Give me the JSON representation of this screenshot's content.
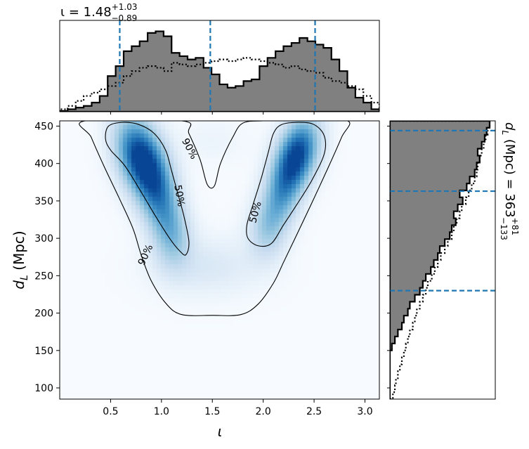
{
  "chart_data": [
    {
      "panel": "top-marginal",
      "type": "histogram-step",
      "title": {
        "symbol": "ι",
        "text": " = 1.48",
        "sup": "+1.03",
        "sub": "−0.89"
      },
      "x_range": [
        0.0,
        3.1416
      ],
      "bins": 40,
      "series": [
        {
          "style": "filled-step",
          "color": "#808080",
          "values": [
            0.01,
            0.03,
            0.05,
            0.07,
            0.11,
            0.19,
            0.43,
            0.55,
            0.73,
            0.79,
            0.85,
            0.95,
            0.97,
            0.91,
            0.71,
            0.67,
            0.63,
            0.65,
            0.53,
            0.45,
            0.33,
            0.29,
            0.31,
            0.37,
            0.39,
            0.55,
            0.65,
            0.73,
            0.79,
            0.83,
            0.89,
            0.85,
            0.81,
            0.77,
            0.63,
            0.49,
            0.29,
            0.17,
            0.11,
            0.03
          ]
        },
        {
          "style": "dotted-step",
          "color": "#000000",
          "values": [
            0.03,
            0.07,
            0.13,
            0.19,
            0.23,
            0.27,
            0.31,
            0.35,
            0.43,
            0.49,
            0.53,
            0.55,
            0.53,
            0.49,
            0.59,
            0.57,
            0.55,
            0.57,
            0.59,
            0.61,
            0.63,
            0.61,
            0.63,
            0.65,
            0.63,
            0.61,
            0.59,
            0.57,
            0.53,
            0.55,
            0.51,
            0.49,
            0.47,
            0.41,
            0.37,
            0.35,
            0.31,
            0.27,
            0.19,
            0.11
          ]
        }
      ],
      "vlines": [
        0.59,
        1.48,
        2.51
      ],
      "vline_color": "#1f77b4"
    },
    {
      "panel": "main",
      "type": "heatmap",
      "xlabel": "ι",
      "ylabel": {
        "main": "d",
        "sub": "L",
        "rest": " (Mpc)"
      },
      "x_range": [
        0.0,
        3.1416
      ],
      "y_range": [
        85,
        457
      ],
      "xticks": [
        0.5,
        1.0,
        1.5,
        2.0,
        2.5,
        3.0
      ],
      "xtick_labels": [
        "0.5",
        "1.0",
        "1.5",
        "2.0",
        "2.5",
        "3.0"
      ],
      "yticks": [
        100,
        150,
        200,
        250,
        300,
        350,
        400,
        450
      ],
      "ytick_labels": [
        "100",
        "150",
        "200",
        "250",
        "300",
        "350",
        "400",
        "450"
      ],
      "colormap": "Blues",
      "density_blobs": [
        {
          "x": 0.78,
          "y": 410,
          "sx": 0.17,
          "sy": 38,
          "w": 1.0,
          "corr": -0.3
        },
        {
          "x": 0.98,
          "y": 355,
          "sx": 0.15,
          "sy": 42,
          "w": 0.65,
          "corr": -0.3
        },
        {
          "x": 1.12,
          "y": 300,
          "sx": 0.13,
          "sy": 30,
          "w": 0.32,
          "corr": 0
        },
        {
          "x": 2.35,
          "y": 415,
          "sx": 0.15,
          "sy": 34,
          "w": 0.95,
          "corr": 0.3
        },
        {
          "x": 2.18,
          "y": 360,
          "sx": 0.14,
          "sy": 38,
          "w": 0.6,
          "corr": 0.3
        },
        {
          "x": 2.02,
          "y": 310,
          "sx": 0.13,
          "sy": 28,
          "w": 0.3,
          "corr": 0
        },
        {
          "x": 1.45,
          "y": 262,
          "sx": 0.38,
          "sy": 28,
          "w": 0.18,
          "corr": 0
        },
        {
          "x": 1.5,
          "y": 430,
          "sx": 0.25,
          "sy": 22,
          "w": 0.07,
          "corr": 0
        }
      ],
      "contours": [
        {
          "label": "90%",
          "label_pos": [
            1.28,
            420
          ],
          "label_rot": 62,
          "points": [
            [
              0.25,
              457
            ],
            [
              0.31,
              435
            ],
            [
              0.44,
              395
            ],
            [
              0.58,
              355
            ],
            [
              0.72,
              313
            ],
            [
              0.8,
              278
            ],
            [
              0.9,
              243
            ],
            [
              1.05,
              212
            ],
            [
              1.2,
              198
            ],
            [
              1.5,
              197
            ],
            [
              1.78,
              198
            ],
            [
              1.95,
              212
            ],
            [
              2.1,
              240
            ],
            [
              2.2,
              268
            ],
            [
              2.32,
              302
            ],
            [
              2.47,
              345
            ],
            [
              2.64,
              395
            ],
            [
              2.77,
              435
            ],
            [
              2.83,
              457
            ],
            [
              2.4,
              457
            ],
            [
              2.2,
              457
            ],
            [
              2.0,
              457
            ],
            [
              1.8,
              454
            ],
            [
              1.7,
              435
            ],
            [
              1.58,
              400
            ],
            [
              1.52,
              370
            ],
            [
              1.45,
              372
            ],
            [
              1.38,
              405
            ],
            [
              1.27,
              440
            ],
            [
              1.2,
              457
            ]
          ]
        },
        {
          "label": "50%",
          "label_pos": [
            1.18,
            357
          ],
          "label_rot": 80,
          "points": [
            [
              0.45,
              433
            ],
            [
              0.48,
              450
            ],
            [
              0.62,
              455
            ],
            [
              0.78,
              452
            ],
            [
              0.93,
              440
            ],
            [
              1.04,
              418
            ],
            [
              1.1,
              390
            ],
            [
              1.15,
              365
            ],
            [
              1.22,
              330
            ],
            [
              1.27,
              295
            ],
            [
              1.24,
              278
            ],
            [
              1.18,
              283
            ],
            [
              1.08,
              300
            ],
            [
              0.94,
              330
            ],
            [
              0.8,
              362
            ],
            [
              0.64,
              397
            ],
            [
              0.5,
              418
            ]
          ]
        },
        {
          "label": "50%",
          "label_pos": [
            1.92,
            335
          ],
          "label_rot": -75,
          "points": [
            [
              1.85,
              300
            ],
            [
              1.95,
              290
            ],
            [
              2.08,
              293
            ],
            [
              2.2,
              318
            ],
            [
              2.33,
              345
            ],
            [
              2.48,
              378
            ],
            [
              2.6,
              413
            ],
            [
              2.6,
              437
            ],
            [
              2.5,
              452
            ],
            [
              2.35,
              455
            ],
            [
              2.18,
              452
            ],
            [
              2.1,
              440
            ],
            [
              2.05,
              415
            ],
            [
              1.98,
              380
            ],
            [
              1.9,
              345
            ],
            [
              1.84,
              318
            ]
          ]
        },
        {
          "label": "90%",
          "label_pos": [
            0.84,
            278
          ],
          "label_rot": -65,
          "label_only": true
        }
      ]
    },
    {
      "panel": "right-marginal",
      "type": "histogram-step",
      "orientation": "horizontal",
      "label": {
        "main": "d",
        "sub": "L",
        "rest": " (Mpc) = 363",
        "sup": "+81",
        "sub2": "−133"
      },
      "y_range": [
        85,
        457
      ],
      "bins": 40,
      "bin_edges_start": 85,
      "bin_width": 9.3,
      "series": [
        {
          "style": "filled-step",
          "color": "#808080",
          "values": [
            0,
            0,
            0,
            0,
            0,
            0,
            0,
            0.02,
            0.05,
            0.08,
            0.12,
            0.14,
            0.18,
            0.2,
            0.25,
            0.3,
            0.33,
            0.36,
            0.41,
            0.44,
            0.48,
            0.5,
            0.55,
            0.6,
            0.62,
            0.66,
            0.64,
            0.68,
            0.73,
            0.7,
            0.77,
            0.8,
            0.85,
            0.87,
            0.9,
            0.88,
            0.92,
            0.95,
            0.97,
            1.0
          ]
        },
        {
          "style": "dotted-step",
          "color": "#000000",
          "values": [
            0.03,
            0.05,
            0.06,
            0.08,
            0.1,
            0.12,
            0.14,
            0.16,
            0.18,
            0.2,
            0.23,
            0.25,
            0.27,
            0.3,
            0.33,
            0.36,
            0.38,
            0.42,
            0.45,
            0.48,
            0.51,
            0.55,
            0.58,
            0.62,
            0.64,
            0.67,
            0.7,
            0.72,
            0.76,
            0.79,
            0.82,
            0.85,
            0.87,
            0.88,
            0.9,
            0.92,
            0.94,
            0.96,
            0.98,
            1.0
          ]
        }
      ],
      "hlines": [
        230,
        363,
        444
      ],
      "hline_color": "#1f77b4"
    }
  ]
}
